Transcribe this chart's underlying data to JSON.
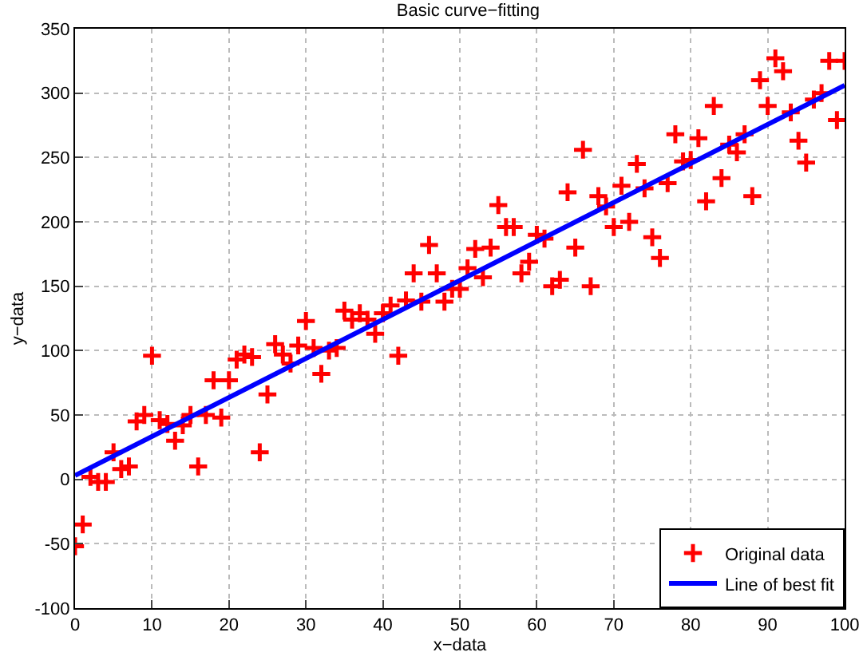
{
  "chart_data": {
    "type": "scatter",
    "title": "Basic curve−fitting",
    "xlabel": "x−data",
    "ylabel": "y−data",
    "xlim": [
      0,
      100
    ],
    "xticks": [
      0,
      10,
      20,
      30,
      40,
      50,
      60,
      70,
      80,
      90,
      100
    ],
    "ylim": [
      -100,
      350
    ],
    "yticks": [
      -100,
      -50,
      0,
      50,
      100,
      150,
      200,
      250,
      300,
      350
    ],
    "grid": true,
    "legend": "bottom right",
    "series": [
      {
        "name": "Original data",
        "marker": "cross",
        "color": "#ff0000",
        "x": [
          0,
          1,
          2,
          3,
          4,
          5,
          6,
          7,
          8,
          9,
          10,
          11,
          12,
          13,
          14,
          15,
          16,
          17,
          18,
          19,
          20,
          21,
          22,
          23,
          24,
          25,
          26,
          27,
          28,
          29,
          30,
          31,
          32,
          33,
          34,
          35,
          36,
          37,
          38,
          39,
          40,
          41,
          42,
          43,
          44,
          45,
          46,
          47,
          48,
          49,
          50,
          51,
          52,
          53,
          54,
          55,
          56,
          57,
          58,
          59,
          60,
          61,
          62,
          63,
          64,
          65,
          66,
          67,
          68,
          69,
          70,
          71,
          72,
          73,
          74,
          75,
          76,
          77,
          78,
          79,
          80,
          81,
          82,
          83,
          84,
          85,
          86,
          87,
          88,
          89,
          90,
          91,
          92,
          93,
          94,
          95,
          96,
          97,
          98,
          99,
          100
        ],
        "values": [
          -52,
          -35,
          2,
          -2,
          -2,
          21,
          8,
          10,
          45,
          50,
          96,
          46,
          43,
          30,
          42,
          50,
          10,
          50,
          77,
          48,
          77,
          93,
          97,
          95,
          21,
          66,
          105,
          97,
          90,
          104,
          123,
          102,
          82,
          100,
          102,
          131,
          124,
          129,
          124,
          113,
          129,
          135,
          96,
          139,
          160,
          138,
          182,
          160,
          138,
          148,
          148,
          164,
          179,
          157,
          180,
          213,
          196,
          196,
          160,
          169,
          190,
          187,
          150,
          155,
          223,
          180,
          256,
          150,
          220,
          212,
          196,
          228,
          200,
          245,
          226,
          188,
          172,
          230,
          268,
          247,
          248,
          265,
          216,
          290,
          234,
          260,
          254,
          268,
          220,
          310,
          290,
          327,
          317,
          285,
          263,
          246,
          295,
          300,
          325,
          279,
          325
        ]
      },
      {
        "name": "Line of best fit",
        "type": "line",
        "line_style": "solid",
        "marker": "none",
        "color": "#0000ff",
        "x": [
          0,
          100
        ],
        "values": [
          3,
          306
        ]
      }
    ]
  }
}
